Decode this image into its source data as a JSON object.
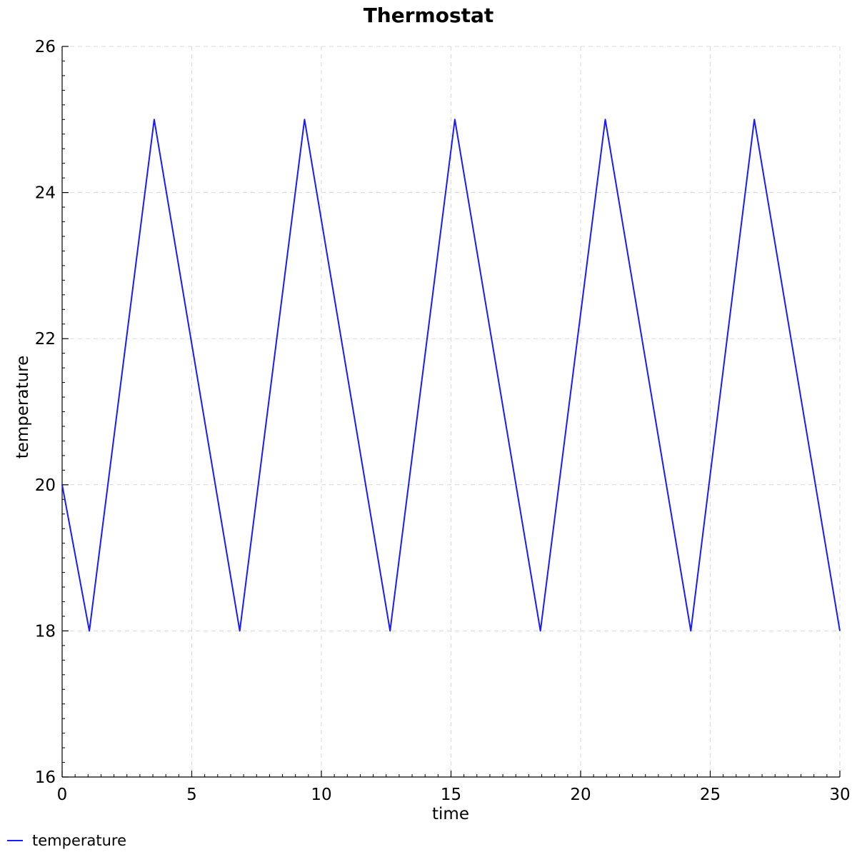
{
  "chart_data": {
    "type": "line",
    "title": "Thermostat",
    "xlabel": "time",
    "ylabel": "temperature",
    "xlim": [
      0,
      30
    ],
    "ylim": [
      16,
      26
    ],
    "x_ticks": [
      0,
      5,
      10,
      15,
      20,
      25,
      30
    ],
    "y_ticks": [
      16,
      18,
      20,
      22,
      24,
      26
    ],
    "grid": true,
    "legend_position": "bottom-left",
    "series": [
      {
        "name": "temperature",
        "color": "#1a1aff",
        "x": [
          0,
          1.05,
          3.55,
          6.85,
          9.35,
          12.65,
          15.15,
          18.45,
          20.95,
          24.25,
          26.7,
          30
        ],
        "y": [
          20,
          18,
          25,
          18,
          25,
          18,
          25,
          18,
          25,
          18,
          25,
          18
        ]
      }
    ]
  }
}
